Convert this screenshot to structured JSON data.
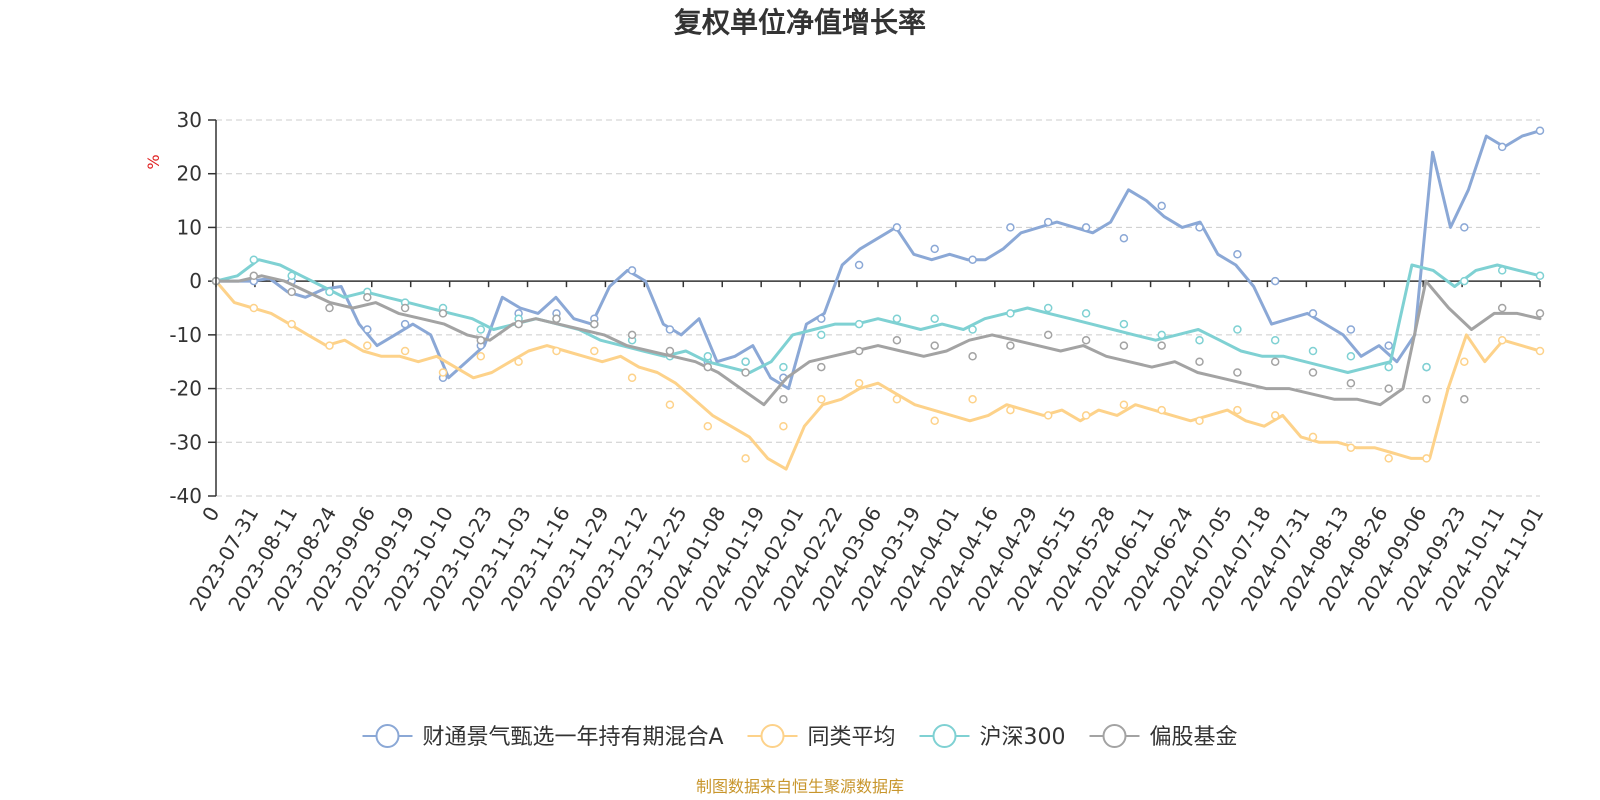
{
  "chart_data": {
    "type": "line",
    "title": "复权单位净值增长率",
    "ylabel": "%",
    "ylim": [
      -40,
      30
    ],
    "yticks": [
      30,
      20,
      10,
      0,
      -10,
      -20,
      -30,
      -40
    ],
    "x_tick_labels": [
      "0",
      "2023-07-31",
      "2023-08-11",
      "2023-08-24",
      "2023-09-06",
      "2023-09-19",
      "2023-10-10",
      "2023-10-23",
      "2023-11-03",
      "2023-11-16",
      "2023-11-29",
      "2023-12-12",
      "2023-12-25",
      "2024-01-08",
      "2024-01-19",
      "2024-02-01",
      "2024-02-22",
      "2024-03-06",
      "2024-03-19",
      "2024-04-01",
      "2024-04-16",
      "2024-04-29",
      "2024-05-15",
      "2024-05-28",
      "2024-06-11",
      "2024-06-24",
      "2024-07-05",
      "2024-07-18",
      "2024-07-31",
      "2024-08-13",
      "2024-08-26",
      "2024-09-06",
      "2024-09-23",
      "2024-10-11",
      "2024-11-01"
    ],
    "grid": true,
    "legend_position": "bottom",
    "series": [
      {
        "name": "财通景气甄选一年持有期混合A",
        "color": "#8ba8d6",
        "values": [
          0,
          0,
          0,
          0.5,
          -2,
          -3,
          -1.5,
          -1,
          -8,
          -12,
          -10,
          -8,
          -10,
          -18,
          -15,
          -12,
          -3,
          -5,
          -6,
          -3,
          -7,
          -8,
          -1,
          2,
          0,
          -8,
          -10,
          -7,
          -15,
          -14,
          -12,
          -18,
          -20,
          -8,
          -6,
          3,
          6,
          8,
          10,
          5,
          4,
          5,
          4,
          4,
          6,
          9,
          10,
          11,
          10,
          9,
          11,
          17,
          15,
          12,
          10,
          11,
          5,
          3,
          -1,
          -8,
          -7,
          -6,
          -8,
          -10,
          -14,
          -12,
          -15,
          -10,
          24,
          10,
          17,
          27,
          25,
          27,
          28
        ],
        "markers": [
          0,
          0,
          0,
          -2,
          -9,
          -8,
          -18,
          -12,
          -6,
          -6,
          -7,
          2,
          -9,
          -15,
          -15,
          -18,
          -7,
          3,
          10,
          6,
          4,
          10,
          11,
          10,
          8,
          14,
          10,
          5,
          0,
          -6,
          -9,
          -12,
          -16,
          10,
          25,
          28
        ]
      },
      {
        "name": "同类平均",
        "color": "#fdd28a",
        "values": [
          0,
          -4,
          -5,
          -6,
          -8,
          -10,
          -12,
          -11,
          -13,
          -14,
          -14,
          -15,
          -14,
          -16,
          -18,
          -17,
          -15,
          -13,
          -12,
          -13,
          -14,
          -15,
          -14,
          -16,
          -17,
          -19,
          -22,
          -25,
          -27,
          -29,
          -33,
          -35,
          -27,
          -23,
          -22,
          -20,
          -19,
          -21,
          -23,
          -24,
          -25,
          -26,
          -25,
          -23,
          -24,
          -25,
          -24,
          -26,
          -24,
          -25,
          -23,
          -24,
          -25,
          -26,
          -25,
          -24,
          -26,
          -27,
          -25,
          -29,
          -30,
          -30,
          -31,
          -31,
          -32,
          -33,
          -33,
          -20,
          -10,
          -15,
          -11,
          -12,
          -13
        ],
        "markers": [
          0,
          -5,
          -8,
          -12,
          -12,
          -13,
          -17,
          -14,
          -15,
          -13,
          -13,
          -18,
          -23,
          -27,
          -33,
          -27,
          -22,
          -19,
          -22,
          -26,
          -22,
          -24,
          -25,
          -25,
          -23,
          -24,
          -26,
          -24,
          -25,
          -29,
          -31,
          -33,
          -33,
          -15,
          -11,
          -13
        ]
      },
      {
        "name": "沪深300",
        "color": "#7fd1d3",
        "values": [
          0,
          1,
          4,
          3,
          1,
          -1,
          -3,
          -2,
          -3,
          -4,
          -5,
          -6,
          -7,
          -9,
          -8,
          -7,
          -8,
          -9,
          -11,
          -12,
          -13,
          -14,
          -13,
          -15,
          -16,
          -17,
          -15,
          -10,
          -9,
          -8,
          -8,
          -7,
          -8,
          -9,
          -8,
          -9,
          -7,
          -6,
          -5,
          -6,
          -7,
          -8,
          -9,
          -10,
          -11,
          -10,
          -9,
          -11,
          -13,
          -14,
          -14,
          -15,
          -16,
          -17,
          -16,
          -15,
          3,
          2,
          -1,
          2,
          3,
          2,
          1
        ],
        "markers": [
          0,
          4,
          1,
          -2,
          -2,
          -4,
          -5,
          -9,
          -7,
          -7,
          -8,
          -11,
          -14,
          -14,
          -15,
          -16,
          -10,
          -8,
          -7,
          -7,
          -9,
          -6,
          -5,
          -6,
          -8,
          -10,
          -11,
          -9,
          -11,
          -13,
          -14,
          -16,
          -16,
          0,
          2,
          1
        ]
      },
      {
        "name": "偏股基金",
        "color": "#a3a3a3",
        "values": [
          0,
          0,
          1,
          0,
          -2,
          -4,
          -5,
          -4,
          -6,
          -7,
          -8,
          -10,
          -11,
          -8,
          -7,
          -8,
          -9,
          -10,
          -12,
          -13,
          -14,
          -15,
          -17,
          -20,
          -23,
          -18,
          -15,
          -14,
          -13,
          -12,
          -13,
          -14,
          -13,
          -11,
          -10,
          -11,
          -12,
          -13,
          -12,
          -14,
          -15,
          -16,
          -15,
          -17,
          -18,
          -19,
          -20,
          -20,
          -21,
          -22,
          -22,
          -23,
          -20,
          0,
          -5,
          -9,
          -6,
          -6,
          -7
        ],
        "markers": [
          0,
          1,
          -2,
          -5,
          -3,
          -5,
          -6,
          -11,
          -8,
          -7,
          -8,
          -10,
          -13,
          -16,
          -17,
          -22,
          -16,
          -13,
          -11,
          -12,
          -14,
          -12,
          -10,
          -11,
          -12,
          -12,
          -15,
          -17,
          -15,
          -17,
          -19,
          -20,
          -22,
          -22,
          -5,
          -6
        ]
      }
    ]
  },
  "source": "制图数据来自恒生聚源数据库"
}
